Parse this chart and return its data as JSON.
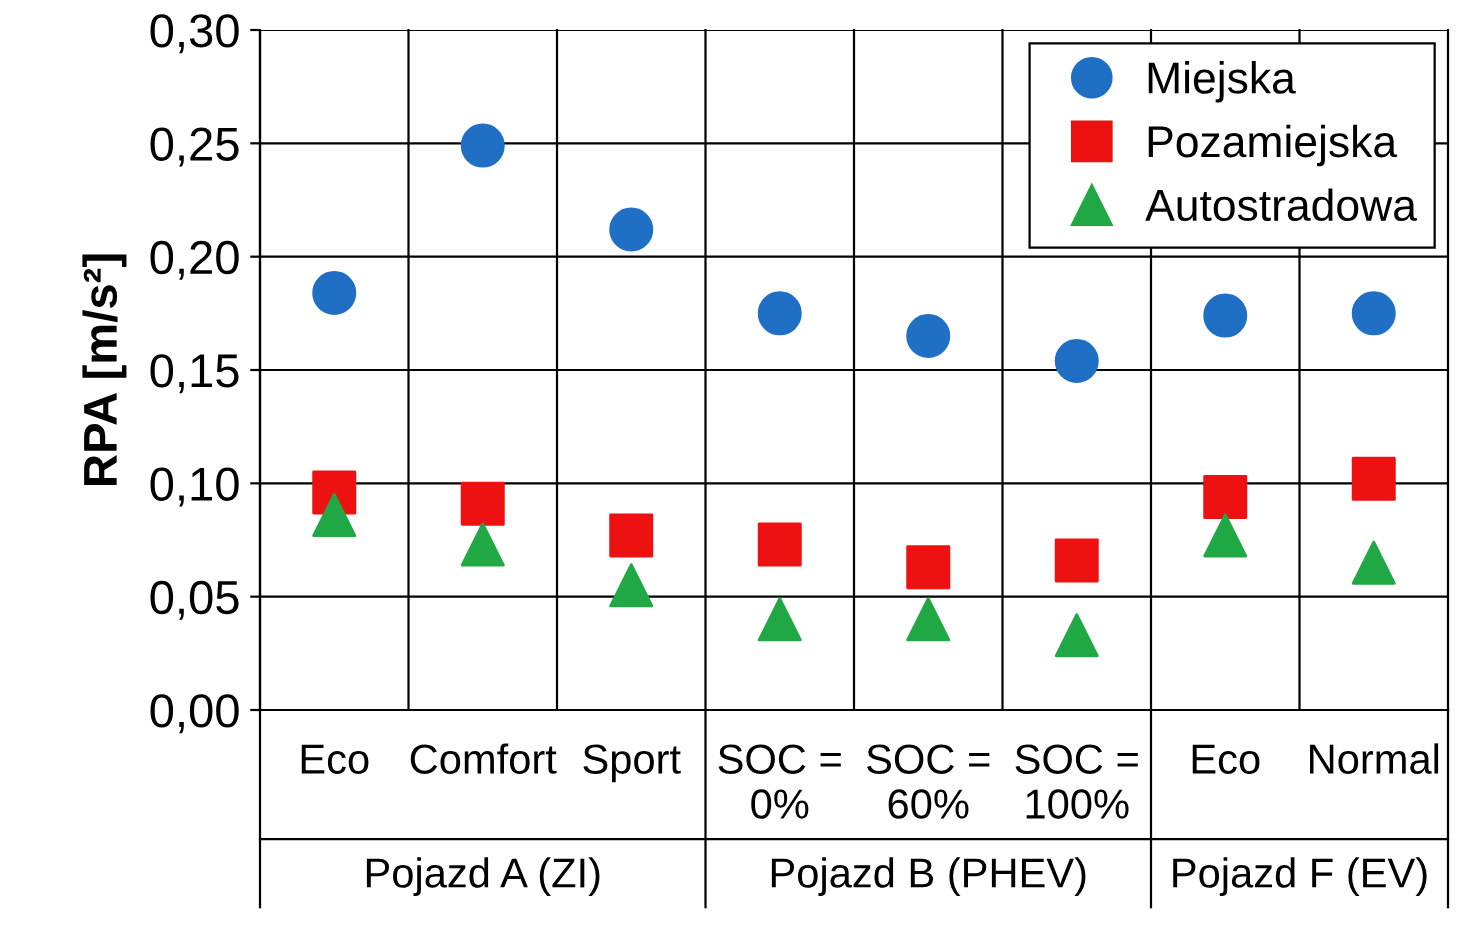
{
  "chart_data": {
    "type": "scatter",
    "ylabel": "RPA [m/s²]",
    "categories": [
      "Eco",
      "Comfort",
      "Sport",
      "SOC =\n0%",
      "SOC =\n60%",
      "SOC =\n100%",
      "Eco",
      "Normal"
    ],
    "series": [
      {
        "name": "Miejska",
        "color": "#1f6fc5",
        "marker": "circle",
        "values": [
          0.184,
          0.249,
          0.212,
          0.175,
          0.165,
          0.154,
          0.174,
          0.175
        ]
      },
      {
        "name": "Pozamiejska",
        "color": "#ee1111",
        "marker": "square",
        "values": [
          0.096,
          0.091,
          0.077,
          0.073,
          0.063,
          0.066,
          0.094,
          0.102
        ]
      },
      {
        "name": "Autostradowa",
        "color": "#1fa844",
        "marker": "triangle",
        "values": [
          0.086,
          0.073,
          0.055,
          0.04,
          0.04,
          0.033,
          0.077,
          0.065
        ]
      }
    ],
    "ylim": [
      0,
      0.3
    ],
    "yticks": [
      {
        "value": 0,
        "label": "0,00"
      },
      {
        "value": 0.05,
        "label": "0,05"
      },
      {
        "value": 0.1,
        "label": "0,10"
      },
      {
        "value": 0.15,
        "label": "0,15"
      },
      {
        "value": 0.2,
        "label": "0,20"
      },
      {
        "value": 0.25,
        "label": "0,25"
      },
      {
        "value": 0.3,
        "label": "0,30"
      }
    ],
    "grid": true,
    "legend": "top right",
    "annotations": [
      "Pojazd A (ZI)",
      "Pojazd B (PHEV)",
      "Pojazd F (EV)"
    ]
  }
}
